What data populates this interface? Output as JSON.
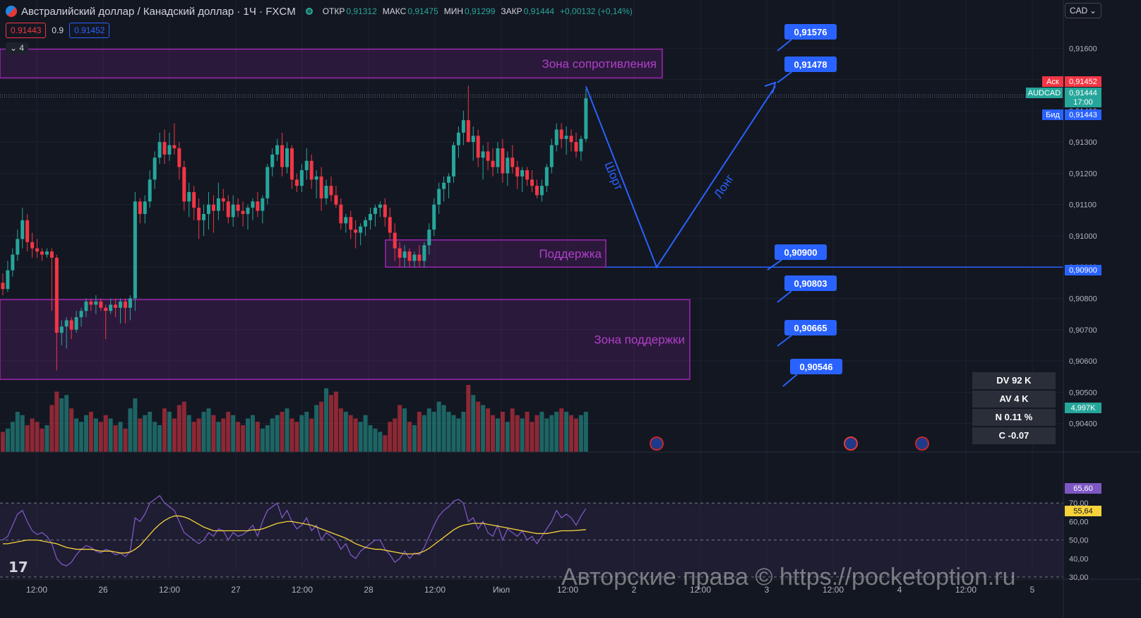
{
  "header": {
    "title": "Австралийский доллар / Канадский доллар · 1Ч · FXCM",
    "open_label": "ОТКР",
    "open": "0,91312",
    "high_label": "МАКС",
    "high": "0,91475",
    "low_label": "МИН",
    "low": "0,91299",
    "close_label": "ЗАКР",
    "close": "0,91444",
    "change": "+0,00132 (+0,14%)",
    "bid": "0.91443",
    "spread": "0.9",
    "ask": "0.91452",
    "collapse_count": "4"
  },
  "currency": "CAD",
  "colors": {
    "up": "#26a69a",
    "down": "#f23645",
    "zone": "#9c27b0",
    "line": "#2962ff",
    "rsi": "#7e57c2",
    "rsi_ma": "#f7d23a"
  },
  "chart_data": {
    "type": "candlestick",
    "symbol": "AUDCAD",
    "price_axis": {
      "min": 0.90372,
      "max": 0.91621,
      "ticks": [
        "0,91600",
        "0,91500",
        "0,91400",
        "0,91300",
        "0,91200",
        "0,91100",
        "0,91000",
        "0,90900",
        "0,90800",
        "0,90700",
        "0,90600",
        "0,90500",
        "0,90400"
      ]
    },
    "time_axis": {
      "labels": [
        "12:00",
        "26",
        "12:00",
        "27",
        "12:00",
        "28",
        "12:00",
        "Июл",
        "12:00",
        "2",
        "12:00",
        "3",
        "12:00",
        "4",
        "12:00",
        "5"
      ]
    },
    "candles": [
      [
        0.9085,
        0.9088,
        0.9081,
        0.9083
      ],
      [
        0.9083,
        0.9092,
        0.9082,
        0.9089
      ],
      [
        0.9089,
        0.9096,
        0.9087,
        0.9094
      ],
      [
        0.9094,
        0.9102,
        0.9092,
        0.9099
      ],
      [
        0.9099,
        0.9109,
        0.9096,
        0.9105
      ],
      [
        0.9105,
        0.9107,
        0.9095,
        0.9098
      ],
      [
        0.9098,
        0.9101,
        0.9093,
        0.9096
      ],
      [
        0.9096,
        0.9099,
        0.9093,
        0.9095
      ],
      [
        0.9095,
        0.9096,
        0.9092,
        0.9094
      ],
      [
        0.9094,
        0.9096,
        0.9093,
        0.9095
      ],
      [
        0.9095,
        0.9096,
        0.9076,
        0.9093
      ],
      [
        0.9093,
        0.9094,
        0.9057,
        0.9069
      ],
      [
        0.9069,
        0.9073,
        0.9065,
        0.9071
      ],
      [
        0.9071,
        0.9074,
        0.9064,
        0.9073
      ],
      [
        0.9073,
        0.9074,
        0.9067,
        0.907
      ],
      [
        0.907,
        0.9076,
        0.9069,
        0.9074
      ],
      [
        0.9074,
        0.9077,
        0.9071,
        0.9076
      ],
      [
        0.9076,
        0.908,
        0.9074,
        0.9079
      ],
      [
        0.9079,
        0.908,
        0.9076,
        0.9078
      ],
      [
        0.9078,
        0.9081,
        0.9075,
        0.9079
      ],
      [
        0.9079,
        0.908,
        0.9076,
        0.9077
      ],
      [
        0.9077,
        0.9078,
        0.9067,
        0.9076
      ],
      [
        0.9076,
        0.908,
        0.9075,
        0.9078
      ],
      [
        0.9078,
        0.908,
        0.9074,
        0.9077
      ],
      [
        0.9077,
        0.908,
        0.9072,
        0.9079
      ],
      [
        0.9079,
        0.908,
        0.9072,
        0.9077
      ],
      [
        0.9077,
        0.9081,
        0.9073,
        0.908
      ],
      [
        0.908,
        0.9114,
        0.9076,
        0.9111
      ],
      [
        0.9111,
        0.9112,
        0.9104,
        0.9107
      ],
      [
        0.9107,
        0.9113,
        0.9104,
        0.9111
      ],
      [
        0.9111,
        0.9121,
        0.9109,
        0.9118
      ],
      [
        0.9118,
        0.9127,
        0.9115,
        0.9125
      ],
      [
        0.9125,
        0.9133,
        0.9123,
        0.913
      ],
      [
        0.913,
        0.9134,
        0.9123,
        0.9126
      ],
      [
        0.9126,
        0.9133,
        0.9124,
        0.9129
      ],
      [
        0.9129,
        0.9136,
        0.9126,
        0.9128
      ],
      [
        0.9128,
        0.913,
        0.9118,
        0.9122
      ],
      [
        0.9122,
        0.9124,
        0.9108,
        0.9111
      ],
      [
        0.9111,
        0.9117,
        0.9106,
        0.9114
      ],
      [
        0.9114,
        0.9116,
        0.9105,
        0.9109
      ],
      [
        0.9109,
        0.9112,
        0.9099,
        0.9105
      ],
      [
        0.9105,
        0.911,
        0.91,
        0.9107
      ],
      [
        0.9107,
        0.9114,
        0.9102,
        0.911
      ],
      [
        0.911,
        0.9113,
        0.9101,
        0.9108
      ],
      [
        0.9108,
        0.9117,
        0.9105,
        0.9112
      ],
      [
        0.9112,
        0.9115,
        0.9108,
        0.9111
      ],
      [
        0.9111,
        0.9113,
        0.9104,
        0.9106
      ],
      [
        0.9106,
        0.9113,
        0.9103,
        0.911
      ],
      [
        0.911,
        0.9112,
        0.9106,
        0.9108
      ],
      [
        0.9108,
        0.9111,
        0.9103,
        0.9107
      ],
      [
        0.9107,
        0.911,
        0.9102,
        0.9109
      ],
      [
        0.9109,
        0.9112,
        0.9105,
        0.9111
      ],
      [
        0.9111,
        0.9114,
        0.9106,
        0.9108
      ],
      [
        0.9108,
        0.9113,
        0.9104,
        0.9112
      ],
      [
        0.9112,
        0.9123,
        0.911,
        0.9122
      ],
      [
        0.9122,
        0.9128,
        0.9119,
        0.9126
      ],
      [
        0.9126,
        0.9131,
        0.9124,
        0.9129
      ],
      [
        0.9129,
        0.9133,
        0.9119,
        0.9122
      ],
      [
        0.9122,
        0.913,
        0.912,
        0.9128
      ],
      [
        0.9128,
        0.9129,
        0.9115,
        0.9118
      ],
      [
        0.9118,
        0.912,
        0.9114,
        0.9116
      ],
      [
        0.9116,
        0.9123,
        0.9114,
        0.9121
      ],
      [
        0.9121,
        0.9128,
        0.9118,
        0.9124
      ],
      [
        0.9124,
        0.9126,
        0.9115,
        0.9118
      ],
      [
        0.9118,
        0.9121,
        0.9112,
        0.9119
      ],
      [
        0.9119,
        0.9122,
        0.9108,
        0.9112
      ],
      [
        0.9112,
        0.9118,
        0.911,
        0.9116
      ],
      [
        0.9116,
        0.9119,
        0.9111,
        0.9113
      ],
      [
        0.9113,
        0.9116,
        0.9109,
        0.911
      ],
      [
        0.911,
        0.9112,
        0.9102,
        0.9104
      ],
      [
        0.9104,
        0.9107,
        0.9101,
        0.9106
      ],
      [
        0.9106,
        0.9108,
        0.9099,
        0.9102
      ],
      [
        0.9102,
        0.9105,
        0.9096,
        0.9101
      ],
      [
        0.9101,
        0.9104,
        0.9097,
        0.9103
      ],
      [
        0.9103,
        0.9106,
        0.91,
        0.9105
      ],
      [
        0.9105,
        0.9109,
        0.9102,
        0.9107
      ],
      [
        0.9107,
        0.911,
        0.9103,
        0.9109
      ],
      [
        0.9109,
        0.9111,
        0.9106,
        0.911
      ],
      [
        0.911,
        0.9112,
        0.9103,
        0.9106
      ],
      [
        0.9106,
        0.9109,
        0.9099,
        0.9101
      ],
      [
        0.9101,
        0.9104,
        0.9092,
        0.9096
      ],
      [
        0.9096,
        0.9098,
        0.909,
        0.9093
      ],
      [
        0.9093,
        0.9097,
        0.909,
        0.9095
      ],
      [
        0.9095,
        0.9096,
        0.909,
        0.9092
      ],
      [
        0.9092,
        0.9095,
        0.909,
        0.9094
      ],
      [
        0.9094,
        0.9097,
        0.909,
        0.9092
      ],
      [
        0.9092,
        0.9098,
        0.909,
        0.9097
      ],
      [
        0.9097,
        0.9104,
        0.9094,
        0.9102
      ],
      [
        0.9102,
        0.9112,
        0.91,
        0.911
      ],
      [
        0.911,
        0.9117,
        0.9107,
        0.9115
      ],
      [
        0.9115,
        0.9119,
        0.9111,
        0.9117
      ],
      [
        0.9117,
        0.912,
        0.9112,
        0.9119
      ],
      [
        0.9119,
        0.913,
        0.9117,
        0.9129
      ],
      [
        0.9129,
        0.9135,
        0.9125,
        0.9133
      ],
      [
        0.9133,
        0.914,
        0.9129,
        0.9137
      ],
      [
        0.9137,
        0.9148,
        0.913,
        0.913
      ],
      [
        0.913,
        0.9135,
        0.9124,
        0.9132
      ],
      [
        0.9132,
        0.9134,
        0.9122,
        0.9125
      ],
      [
        0.9125,
        0.9129,
        0.9118,
        0.9127
      ],
      [
        0.9127,
        0.913,
        0.9121,
        0.9124
      ],
      [
        0.9124,
        0.9128,
        0.9119,
        0.9122
      ],
      [
        0.9122,
        0.913,
        0.912,
        0.9128
      ],
      [
        0.9128,
        0.9131,
        0.9117,
        0.912
      ],
      [
        0.912,
        0.9127,
        0.9116,
        0.9125
      ],
      [
        0.9125,
        0.9129,
        0.912,
        0.9122
      ],
      [
        0.9122,
        0.9124,
        0.9115,
        0.9119
      ],
      [
        0.9119,
        0.9122,
        0.9114,
        0.9121
      ],
      [
        0.9121,
        0.9122,
        0.9116,
        0.9118
      ],
      [
        0.9118,
        0.9121,
        0.9114,
        0.9116
      ],
      [
        0.9116,
        0.9118,
        0.9112,
        0.9113
      ],
      [
        0.9113,
        0.9118,
        0.9111,
        0.9116
      ],
      [
        0.9116,
        0.9123,
        0.9114,
        0.9122
      ],
      [
        0.9122,
        0.9131,
        0.912,
        0.9129
      ],
      [
        0.9129,
        0.9136,
        0.9127,
        0.9134
      ],
      [
        0.9134,
        0.9136,
        0.9128,
        0.9131
      ],
      [
        0.9131,
        0.9135,
        0.9126,
        0.9132
      ],
      [
        0.9132,
        0.9134,
        0.9127,
        0.913
      ],
      [
        0.913,
        0.9133,
        0.9125,
        0.9127
      ],
      [
        0.9127,
        0.9132,
        0.9124,
        0.9131
      ],
      [
        0.9131,
        0.9147,
        0.913,
        0.9144
      ]
    ],
    "volume": [
      6,
      7,
      9,
      12,
      11,
      8,
      10,
      9,
      7,
      8,
      14,
      18,
      16,
      17,
      13,
      10,
      9,
      11,
      12,
      10,
      9,
      11,
      10,
      8,
      9,
      7,
      13,
      16,
      10,
      11,
      12,
      9,
      8,
      13,
      12,
      10,
      14,
      15,
      11,
      9,
      10,
      12,
      13,
      11,
      9,
      10,
      12,
      11,
      9,
      8,
      10,
      11,
      9,
      7,
      8,
      10,
      11,
      12,
      13,
      10,
      9,
      11,
      12,
      10,
      14,
      15,
      19,
      17,
      18,
      13,
      12,
      11,
      10,
      9,
      11,
      8,
      7,
      6,
      5,
      9,
      10,
      14,
      13,
      9,
      8,
      12,
      11,
      13,
      12,
      15,
      14,
      12,
      11,
      10,
      12,
      20,
      17,
      15,
      14,
      13,
      11,
      10,
      12,
      9,
      13,
      11,
      10,
      12,
      9,
      11,
      12,
      10,
      11,
      12,
      13,
      12,
      11,
      10,
      11,
      12
    ],
    "volume_max": 20,
    "rsi": {
      "min": 30,
      "max": 80,
      "levels": [
        70,
        50,
        30
      ],
      "ticks": [
        "70,00",
        "60,00",
        "50,00",
        "40,00",
        "30,00"
      ],
      "value": "65,60",
      "ma_value": "55,64",
      "line": [
        50,
        52,
        58,
        64,
        66,
        60,
        55,
        53,
        54,
        52,
        48,
        40,
        37,
        36,
        38,
        42,
        45,
        47,
        46,
        44,
        43,
        45,
        44,
        42,
        43,
        41,
        44,
        62,
        60,
        64,
        70,
        72,
        74,
        70,
        68,
        66,
        60,
        54,
        52,
        50,
        48,
        50,
        54,
        52,
        56,
        55,
        50,
        54,
        52,
        53,
        55,
        58,
        52,
        60,
        66,
        68,
        70,
        62,
        66,
        60,
        56,
        58,
        62,
        55,
        58,
        50,
        54,
        52,
        50,
        45,
        48,
        42,
        40,
        44,
        46,
        48,
        50,
        50,
        45,
        42,
        38,
        40,
        44,
        40,
        43,
        42,
        46,
        52,
        58,
        63,
        66,
        68,
        71,
        72,
        70,
        60,
        62,
        56,
        60,
        54,
        52,
        58,
        50,
        56,
        54,
        52,
        55,
        50,
        52,
        48,
        52,
        56,
        60,
        66,
        62,
        64,
        62,
        58,
        63,
        67
      ],
      "ma": [
        48,
        48,
        48.5,
        49,
        49.5,
        50,
        50,
        50,
        49.5,
        49,
        48.5,
        48,
        47,
        46,
        45.5,
        45,
        45,
        45,
        45,
        44.5,
        44,
        44,
        44,
        43.5,
        43,
        43,
        43.5,
        45,
        47,
        50,
        53,
        56,
        58.5,
        60.5,
        62,
        63,
        63,
        62.5,
        61.5,
        60,
        58.5,
        57,
        56,
        55,
        55,
        55,
        55,
        55,
        55,
        55,
        55,
        55.5,
        55.5,
        56,
        57,
        58,
        59,
        59.5,
        60,
        60,
        59.5,
        59,
        58.5,
        58,
        57,
        56,
        55,
        54,
        53,
        52,
        51,
        49.5,
        48,
        47,
        46,
        45.5,
        45,
        45,
        44.5,
        44,
        43.5,
        43,
        42.5,
        42.5,
        42.5,
        43,
        44,
        45.5,
        47.5,
        49.5,
        51.5,
        53.5,
        55.5,
        57,
        58,
        58.5,
        59,
        59,
        59,
        58.5,
        58,
        57.5,
        57,
        56.5,
        56,
        55.5,
        55,
        54.5,
        54,
        53.5,
        53.5,
        53.5,
        54,
        54.5,
        55,
        55,
        55,
        55.2,
        55.4,
        55.6
      ]
    },
    "zones": [
      {
        "label": "Зона сопротивления",
        "from": 0.91505,
        "to": 0.91597
      },
      {
        "label": "Поддержка",
        "from": 0.909,
        "to": 0.90987
      },
      {
        "label": "Зона поддержки",
        "from": 0.90541,
        "to": 0.90796
      }
    ],
    "horizontal_line": 0.909,
    "annotations": {
      "short": "Шорт",
      "long": "Лонг"
    },
    "level_labels": [
      "0,91576",
      "0,91478",
      "0,90900",
      "0,90803",
      "0,90665",
      "0,90546"
    ],
    "price_badges": {
      "ask_label": "Аск",
      "ask": "0,91452",
      "symbol": "AUDCAD",
      "last": "0,91444",
      "countdown": "17:00",
      "bid_label": "Бид",
      "bid": "0,91443",
      "line_price": "0,90900",
      "volume": "4,997K",
      "rsi": "65,60",
      "rsi_ma": "55,64"
    }
  },
  "stats": {
    "dv": "DV 92 K",
    "av": "AV 4 K",
    "n": "N 0.11 %",
    "c": "C  -0.07"
  },
  "watermark": "Авторские права © https://pocketoption.ru",
  "tv_logo": "17"
}
